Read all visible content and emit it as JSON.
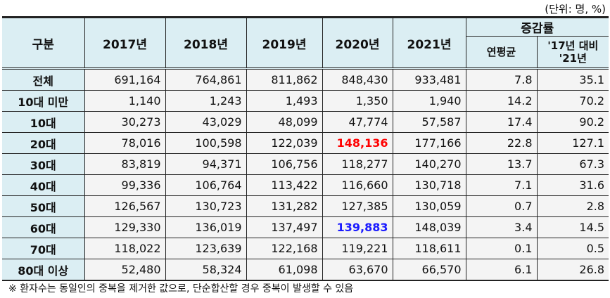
{
  "unit_label": "(단위: 명, %)",
  "header": {
    "category": "구분",
    "years": [
      "2017년",
      "2018년",
      "2019년",
      "2020년",
      "2021년"
    ],
    "change_group": "증감률",
    "annual_avg": "연평균",
    "vs_2017": "'17년 대비 '21년"
  },
  "rows": [
    {
      "label": "전체",
      "values": [
        "691,164",
        "764,861",
        "811,862",
        "848,430",
        "933,481"
      ],
      "avg": "7.8",
      "vs": "35.1"
    },
    {
      "label": "10대 미만",
      "values": [
        "1,140",
        "1,243",
        "1,493",
        "1,350",
        "1,940"
      ],
      "avg": "14.2",
      "vs": "70.2"
    },
    {
      "label": "10대",
      "values": [
        "30,273",
        "43,029",
        "48,099",
        "47,774",
        "57,587"
      ],
      "avg": "17.4",
      "vs": "90.2"
    },
    {
      "label": "20대",
      "values": [
        "78,016",
        "100,598",
        "122,039",
        "148,136",
        "177,166"
      ],
      "avg": "22.8",
      "vs": "127.1",
      "highlight": {
        "index": 3,
        "color": "#ff0000"
      }
    },
    {
      "label": "30대",
      "values": [
        "83,819",
        "94,371",
        "106,756",
        "118,277",
        "140,270"
      ],
      "avg": "13.7",
      "vs": "67.3"
    },
    {
      "label": "40대",
      "values": [
        "99,336",
        "106,764",
        "113,422",
        "116,660",
        "130,718"
      ],
      "avg": "7.1",
      "vs": "31.6"
    },
    {
      "label": "50대",
      "values": [
        "126,567",
        "130,723",
        "131,282",
        "127,385",
        "130,059"
      ],
      "avg": "0.7",
      "vs": "2.8"
    },
    {
      "label": "60대",
      "values": [
        "129,330",
        "136,019",
        "137,497",
        "139,883",
        "148,039"
      ],
      "avg": "3.4",
      "vs": "14.5",
      "highlight": {
        "index": 3,
        "color": "#1a1aff"
      }
    },
    {
      "label": "70대",
      "values": [
        "118,022",
        "123,639",
        "122,168",
        "119,221",
        "118,611"
      ],
      "avg": "0.1",
      "vs": "0.5"
    },
    {
      "label": "80대 이상",
      "values": [
        "52,480",
        "58,324",
        "61,098",
        "63,670",
        "66,570"
      ],
      "avg": "6.1",
      "vs": "26.8"
    }
  ],
  "footnote": "※ 환자수는 동일인의 중복을 제거한 값으로, 단순합산할 경우 중복이 발생할 수 있음"
}
